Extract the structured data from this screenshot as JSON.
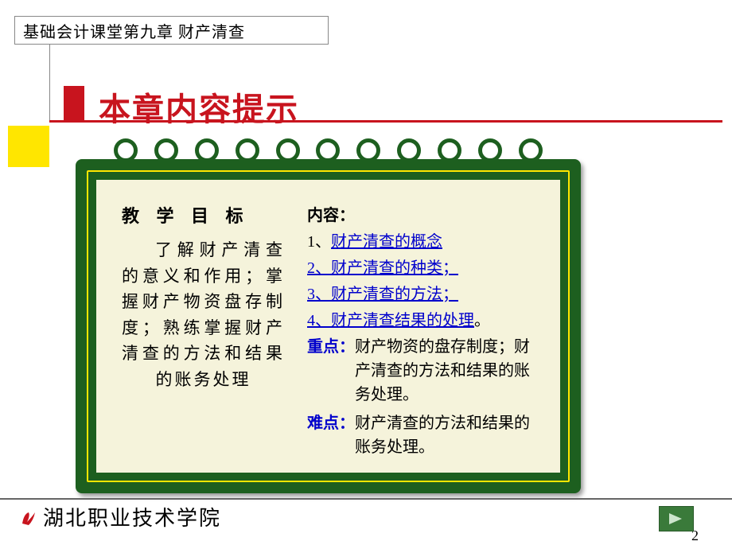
{
  "header": {
    "breadcrumb": "基础会计课堂第九章 财产清查"
  },
  "section": {
    "title": "本章内容提示"
  },
  "colors": {
    "accent_red": "#c8141e",
    "accent_yellow": "#ffe600",
    "notebook_green": "#1d5f1f",
    "paper": "#f5f3db",
    "link_blue": "#0000cc"
  },
  "notebook": {
    "left": {
      "heading": "教 学 目 标",
      "body": "了解财产清查的意义和作用；掌握财产物资盘存制度；熟练掌握财产清查的方法和结果的账务处理"
    },
    "right": {
      "content_label": "内容：",
      "items": [
        {
          "num": "1、",
          "text": "财产清查的概念",
          "tail": ""
        },
        {
          "num": "2、",
          "text": "财产清查的种类；",
          "tail": ""
        },
        {
          "num": "3、",
          "text": "财产清查的方法；",
          "tail": ""
        },
        {
          "num": "4、",
          "text": "财产清查结果的处理",
          "tail": "。"
        }
      ],
      "keypoint": {
        "label": "重点：",
        "text": "财产物资的盘存制度；财产清查的方法和结果的账务处理。"
      },
      "difficulty": {
        "label": "难点：",
        "text": "财产清查的方法和结果的账务处理。"
      }
    },
    "ring_count": 11
  },
  "footer": {
    "school": "湖北职业技术学院",
    "page_number": "2",
    "nav_next": "next"
  }
}
